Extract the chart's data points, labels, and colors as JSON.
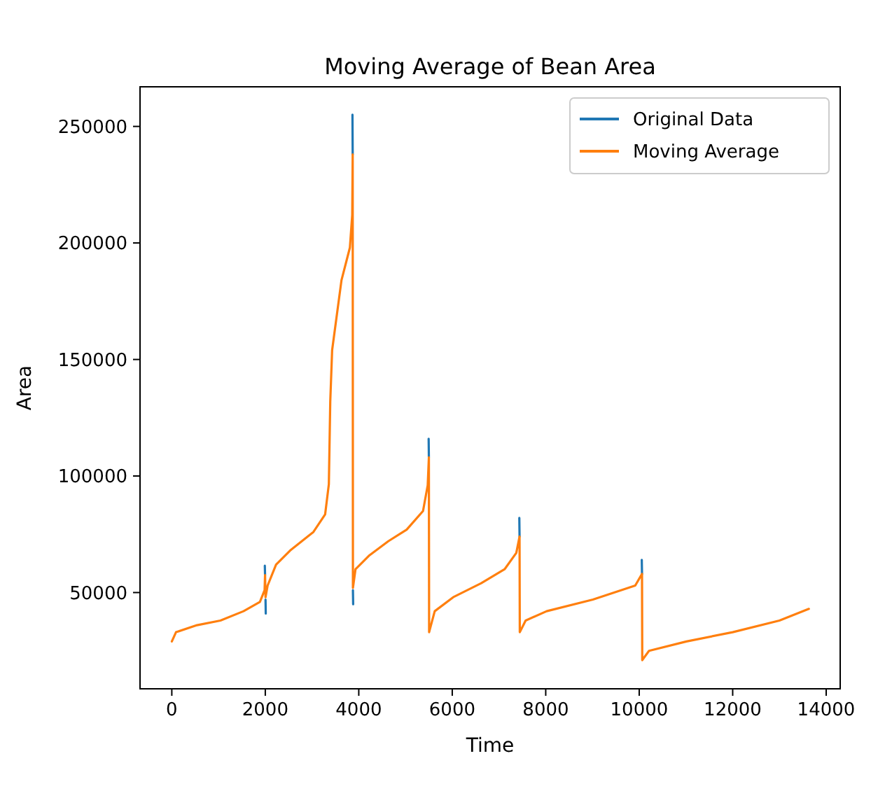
{
  "chart_data": {
    "type": "line",
    "title": "Moving Average of Bean Area",
    "xlabel": "Time",
    "ylabel": "Area",
    "xlim": [
      -680,
      14300
    ],
    "xticks": [
      0,
      2000,
      4000,
      6000,
      8000,
      10000,
      12000,
      14000
    ],
    "ylim": [
      8700,
      267000
    ],
    "yticks": [
      50000,
      100000,
      150000,
      200000,
      250000
    ],
    "grid": false,
    "legend": "top right",
    "marker": "none",
    "line_style": "solid",
    "series": [
      {
        "name": "Original Data",
        "color": "#1f77b4",
        "x": [
          1990,
          1995,
          2000,
          2005,
          2010,
          3000,
          3865,
          3870,
          3872,
          3875,
          3880,
          4500,
          5495,
          5500,
          6500,
          7435,
          7440,
          9000,
          10055,
          10060
        ],
        "values": [
          61500,
          57500,
          null,
          47000,
          41000,
          null,
          255000,
          238000,
          null,
          51000,
          45000,
          null,
          116000,
          108000,
          null,
          82000,
          74000,
          null,
          64000,
          58000
        ]
      },
      {
        "name": "Moving Average",
        "color": "#ff7f0e",
        "x": [
          0,
          90,
          540,
          1040,
          1535,
          1885,
          1985,
          1995,
          2005,
          2050,
          2230,
          2530,
          3030,
          3280,
          3360,
          3390,
          3430,
          3630,
          3810,
          3860,
          3870,
          3875,
          3930,
          4230,
          4630,
          5025,
          5375,
          5475,
          5500,
          5505,
          5625,
          6020,
          6620,
          7120,
          7370,
          7440,
          7445,
          7570,
          8020,
          9010,
          9915,
          10060,
          10065,
          10210,
          11010,
          12000,
          13000,
          13630
        ],
        "values": [
          29000,
          33000,
          36000,
          38000,
          42000,
          46000,
          51000,
          57500,
          48000,
          53000,
          62000,
          68000,
          76000,
          83500,
          96500,
          132000,
          154000,
          184000,
          198000,
          212000,
          238000,
          52000,
          60000,
          66000,
          72000,
          77000,
          85000,
          96000,
          108000,
          33000,
          42000,
          48000,
          54000,
          60000,
          67000,
          74000,
          33000,
          38000,
          42000,
          47000,
          53000,
          58000,
          21000,
          25000,
          29000,
          33000,
          38000,
          43000
        ]
      }
    ]
  }
}
